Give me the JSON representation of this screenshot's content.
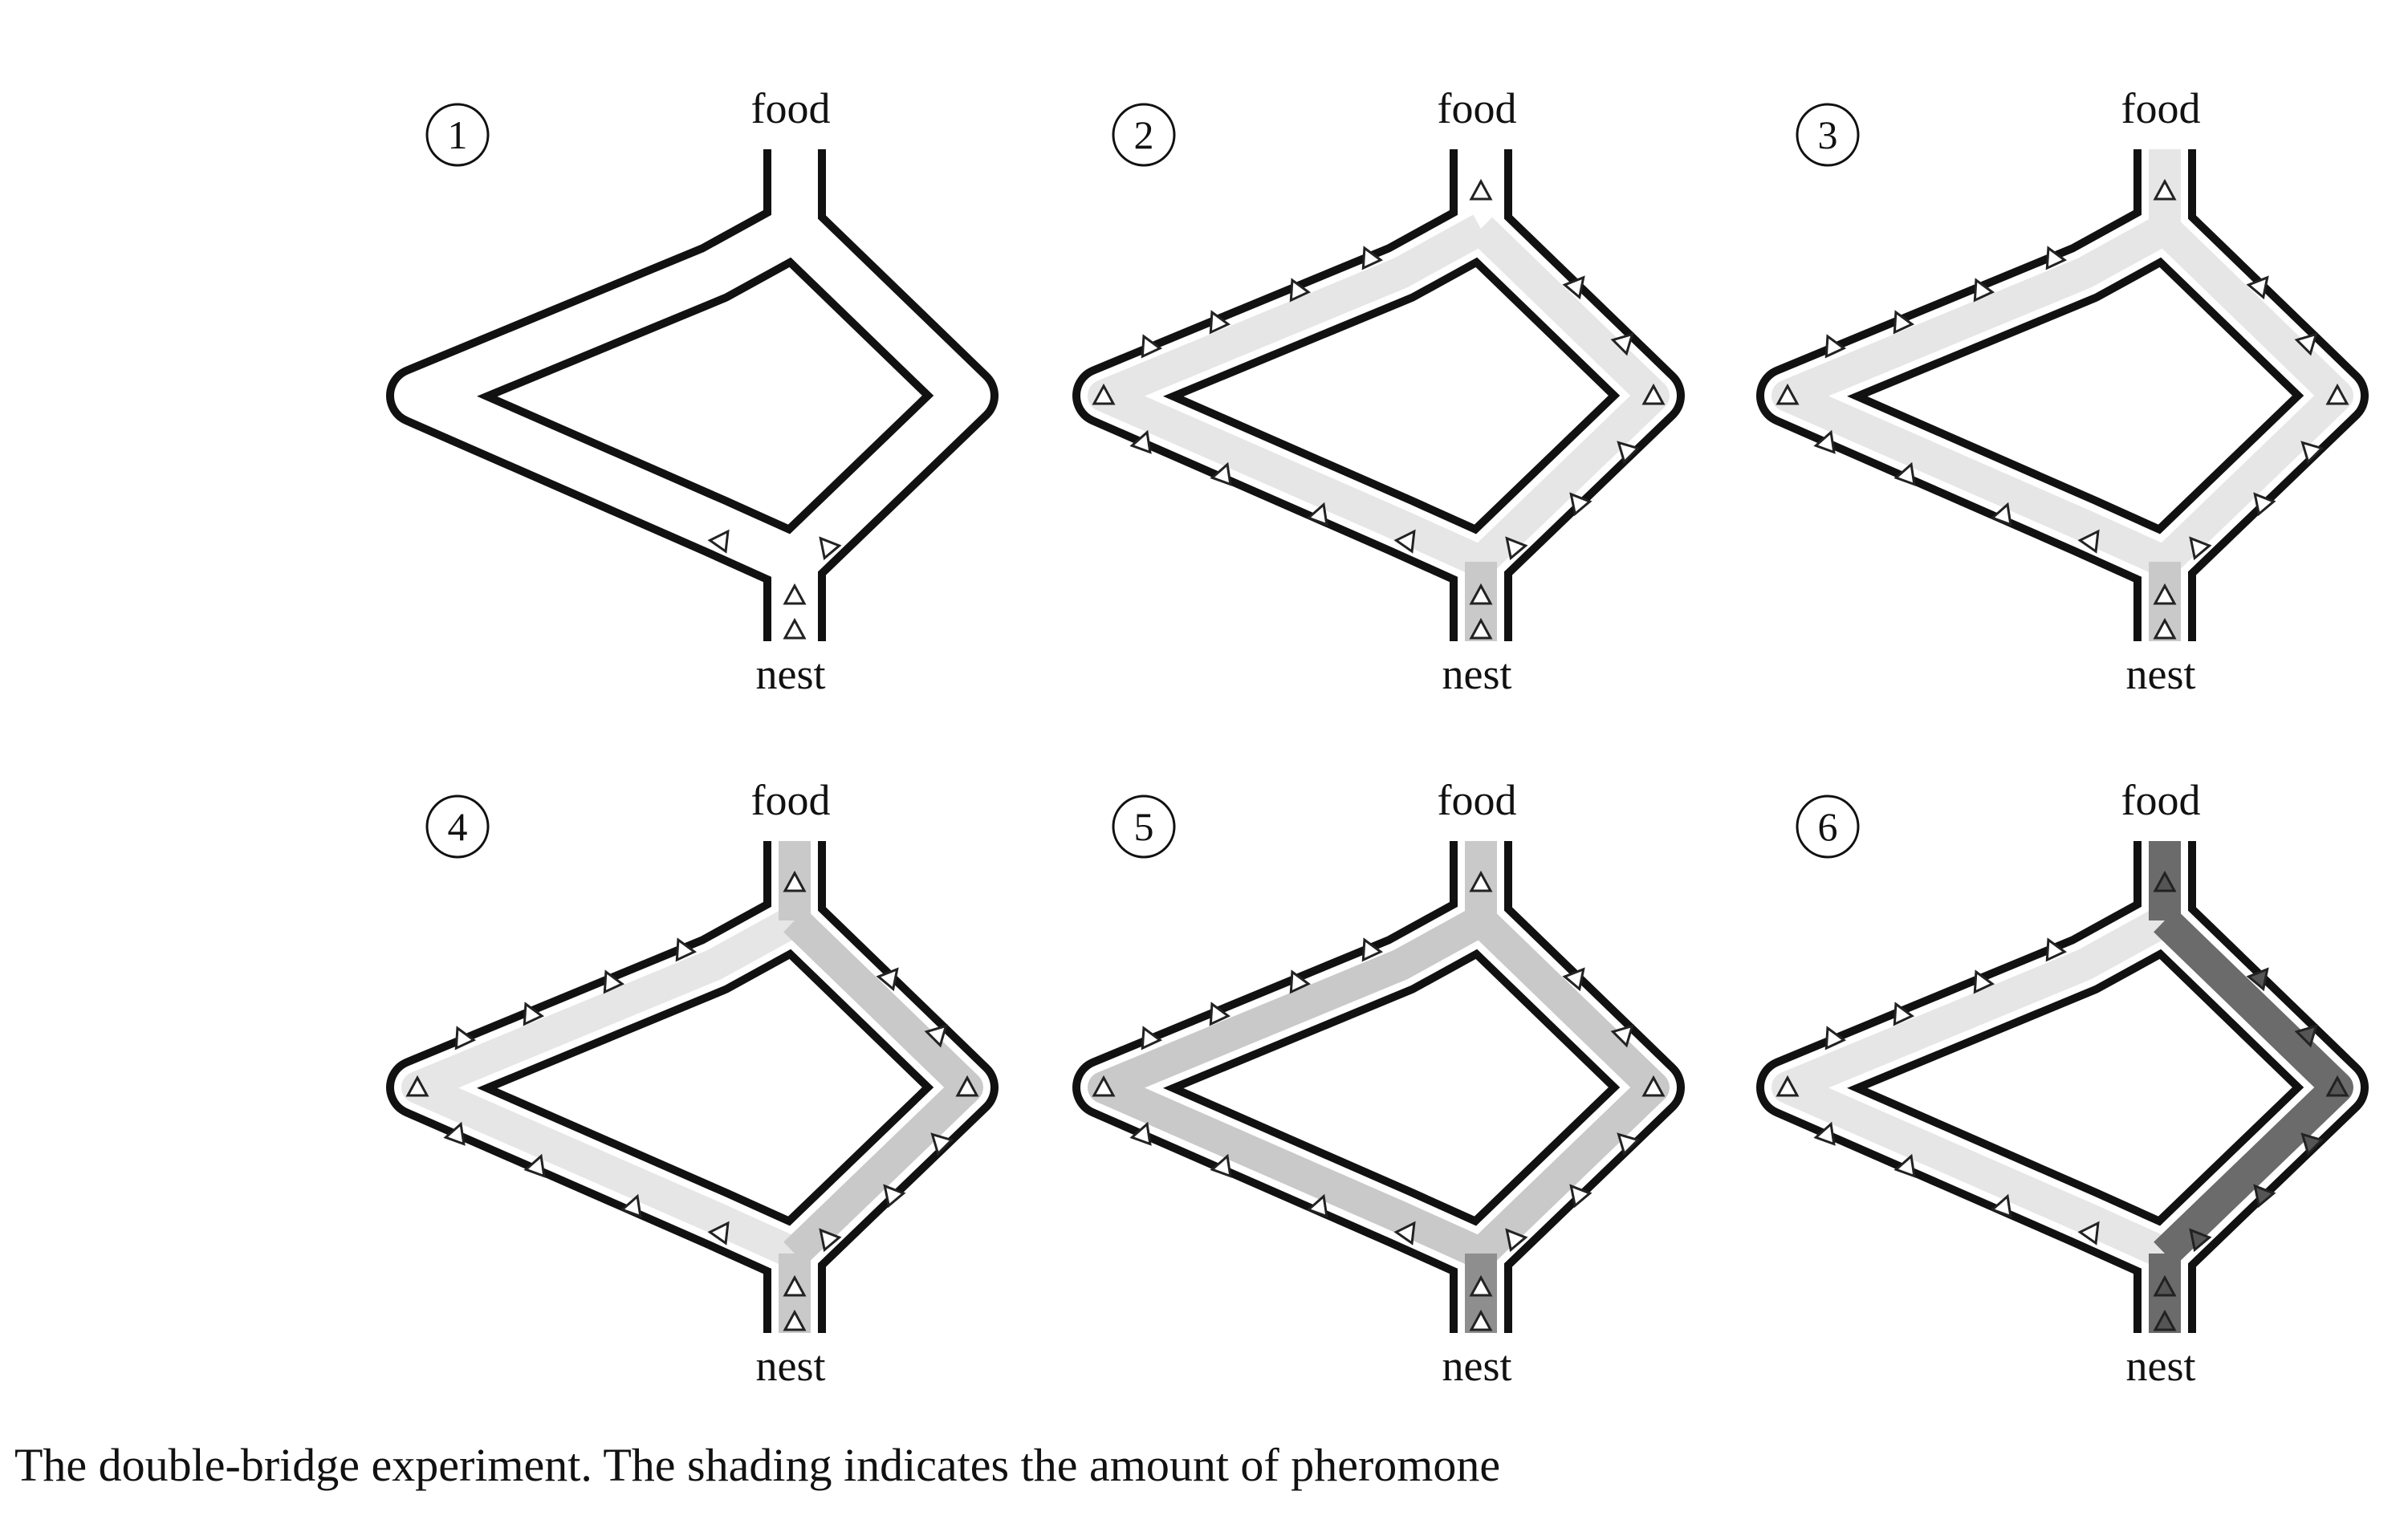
{
  "caption": "The double-bridge experiment. The shading indicates the amount of pheromone",
  "food_label": "food",
  "nest_label": "nest",
  "colors": {
    "wall": "#111111",
    "corridor": "#ffffff",
    "pheromone_light": "#e6e6e6",
    "pheromone_mid": "#c9c9c9",
    "pheromone_dark": "#8e8e8e",
    "pheromone_darkest": "#6b6b6b",
    "ant_outline": "#222222",
    "ant_fill_dark": "#555555"
  },
  "panels": [
    {
      "number": "1",
      "long_branch_pheromone": "none",
      "short_branch_pheromone": "none",
      "nest_stem_pheromone": "none",
      "food_stem_pheromone": "none"
    },
    {
      "number": "2",
      "long_branch_pheromone": "light",
      "short_branch_pheromone": "light",
      "nest_stem_pheromone": "mid",
      "food_stem_pheromone": "none"
    },
    {
      "number": "3",
      "long_branch_pheromone": "light",
      "short_branch_pheromone": "light",
      "nest_stem_pheromone": "mid",
      "food_stem_pheromone": "light"
    },
    {
      "number": "4",
      "long_branch_pheromone": "light",
      "short_branch_pheromone": "mid",
      "nest_stem_pheromone": "mid",
      "food_stem_pheromone": "mid"
    },
    {
      "number": "5",
      "long_branch_pheromone": "mid",
      "short_branch_pheromone": "mid",
      "nest_stem_pheromone": "dark",
      "food_stem_pheromone": "mid"
    },
    {
      "number": "6",
      "long_branch_pheromone": "light",
      "short_branch_pheromone": "darkest",
      "nest_stem_pheromone": "darkest",
      "food_stem_pheromone": "darkest"
    }
  ]
}
